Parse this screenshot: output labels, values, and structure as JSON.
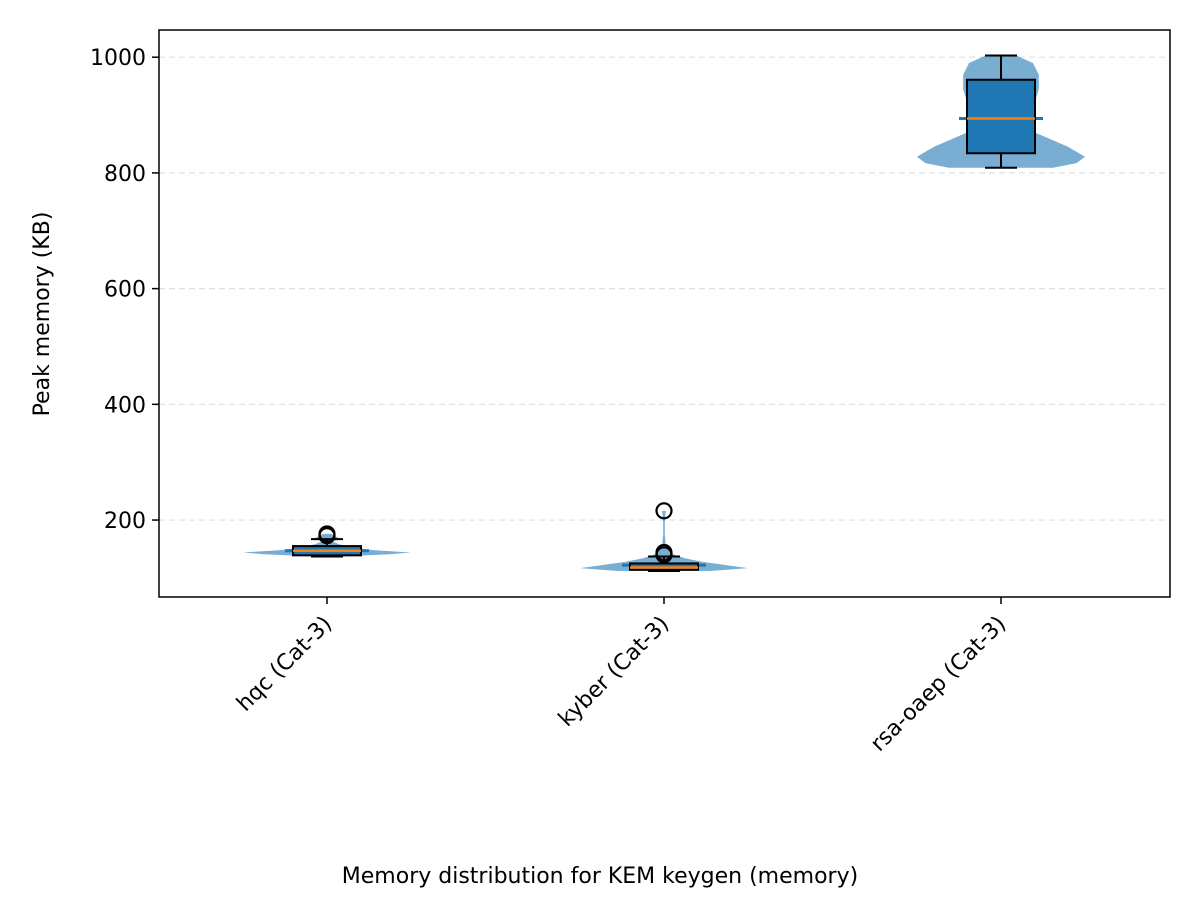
{
  "chart_data": {
    "type": "violin-box",
    "ylabel": "Peak memory (KB)",
    "caption": "Memory distribution for KEM keygen (memory)",
    "ylim": [
      67,
      1047
    ],
    "yticks": [
      200,
      400,
      600,
      800,
      1000
    ],
    "grid": "y-dashed",
    "violin_color": "#1f77b4",
    "box_color": "#1f77b4",
    "median_color": "#ff7f0e",
    "categories": [
      "hqc (Cat-3)",
      "kyber (Cat-3)",
      "rsa-oaep (Cat-3)"
    ],
    "series": [
      {
        "category": "hqc (Cat-3)",
        "whisker_low": 137,
        "q1": 139,
        "median": 147,
        "q3": 155,
        "whisker_high": 167,
        "mean": 147,
        "outliers": [
          173,
          176
        ],
        "violin": [
          [
            137,
            0.15
          ],
          [
            141,
            0.75
          ],
          [
            144,
            1.0
          ],
          [
            148,
            0.55
          ],
          [
            153,
            0.3
          ],
          [
            158,
            0.15
          ],
          [
            163,
            0.06
          ],
          [
            168,
            0.15
          ],
          [
            176,
            0.05
          ]
        ]
      },
      {
        "category": "kyber (Cat-3)",
        "whisker_low": 112,
        "q1": 114,
        "median": 118,
        "q3": 125,
        "whisker_high": 137,
        "mean": 122,
        "outliers": [
          140,
          144,
          216
        ],
        "violin": [
          [
            112,
            0.55
          ],
          [
            117,
            1.0
          ],
          [
            122,
            0.75
          ],
          [
            128,
            0.45
          ],
          [
            134,
            0.25
          ],
          [
            140,
            0.12
          ],
          [
            148,
            0.05
          ],
          [
            158,
            0.02
          ],
          [
            175,
            0.01
          ],
          [
            195,
            0.01
          ],
          [
            216,
            0.02
          ]
        ]
      },
      {
        "category": "rsa-oaep (Cat-3)",
        "whisker_low": 809,
        "q1": 834,
        "median": 894,
        "q3": 961,
        "whisker_high": 1003,
        "mean": 894,
        "outliers": [],
        "violin": [
          [
            809,
            0.62
          ],
          [
            817,
            0.9
          ],
          [
            828,
            1.0
          ],
          [
            845,
            0.8
          ],
          [
            870,
            0.4
          ],
          [
            895,
            0.3
          ],
          [
            920,
            0.4
          ],
          [
            945,
            0.45
          ],
          [
            970,
            0.45
          ],
          [
            990,
            0.38
          ],
          [
            1003,
            0.18
          ]
        ]
      }
    ]
  }
}
